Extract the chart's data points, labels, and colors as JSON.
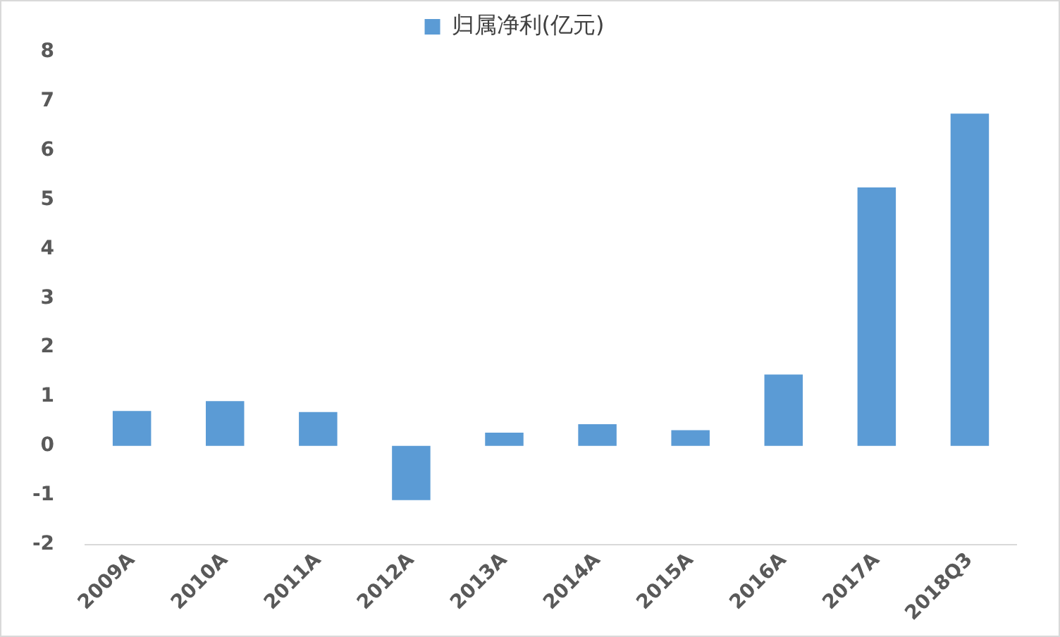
{
  "chart_data": {
    "type": "bar",
    "categories": [
      "2009A",
      "2010A",
      "2011A",
      "2012A",
      "2013A",
      "2014A",
      "2015A",
      "2016A",
      "2017A",
      "2018Q3"
    ],
    "series": [
      {
        "name": "归属净利(亿元)",
        "color": "#5b9bd5",
        "values": [
          0.71,
          0.91,
          0.69,
          -1.1,
          0.27,
          0.44,
          0.32,
          1.45,
          5.25,
          6.75
        ]
      }
    ],
    "ylim": [
      -2,
      8
    ],
    "yticks": [
      -2,
      -1,
      0,
      1,
      2,
      3,
      4,
      5,
      6,
      7,
      8
    ],
    "grid": false,
    "legend": "top"
  }
}
